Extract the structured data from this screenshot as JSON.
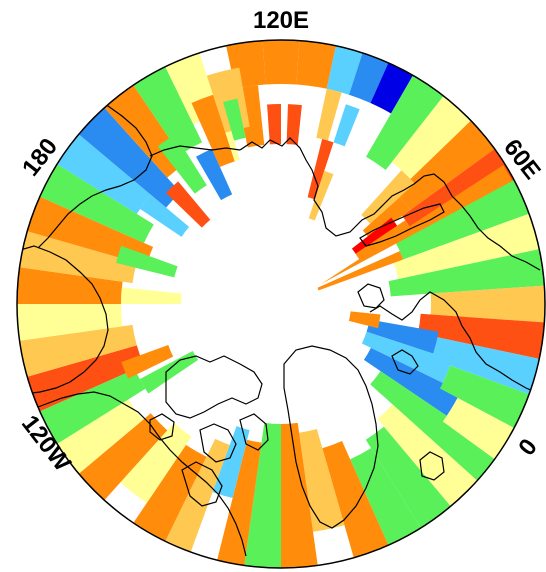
{
  "map": {
    "projection": "north-polar-stereographic",
    "longitude_labels": {
      "top": "120E",
      "upper_left": "180",
      "upper_right": "60E",
      "lower_left": "120W",
      "lower_right": "0"
    },
    "palette": {
      "dark_blue": "#0000e6",
      "blue": "#2a8cf0",
      "light_blue": "#5ad0ff",
      "green": "#5af05a",
      "light_yellow": "#ffff96",
      "yellow_orange": "#ffc850",
      "orange": "#ff8c0a",
      "red_orange": "#ff5014",
      "red": "#ff0000"
    }
  }
}
